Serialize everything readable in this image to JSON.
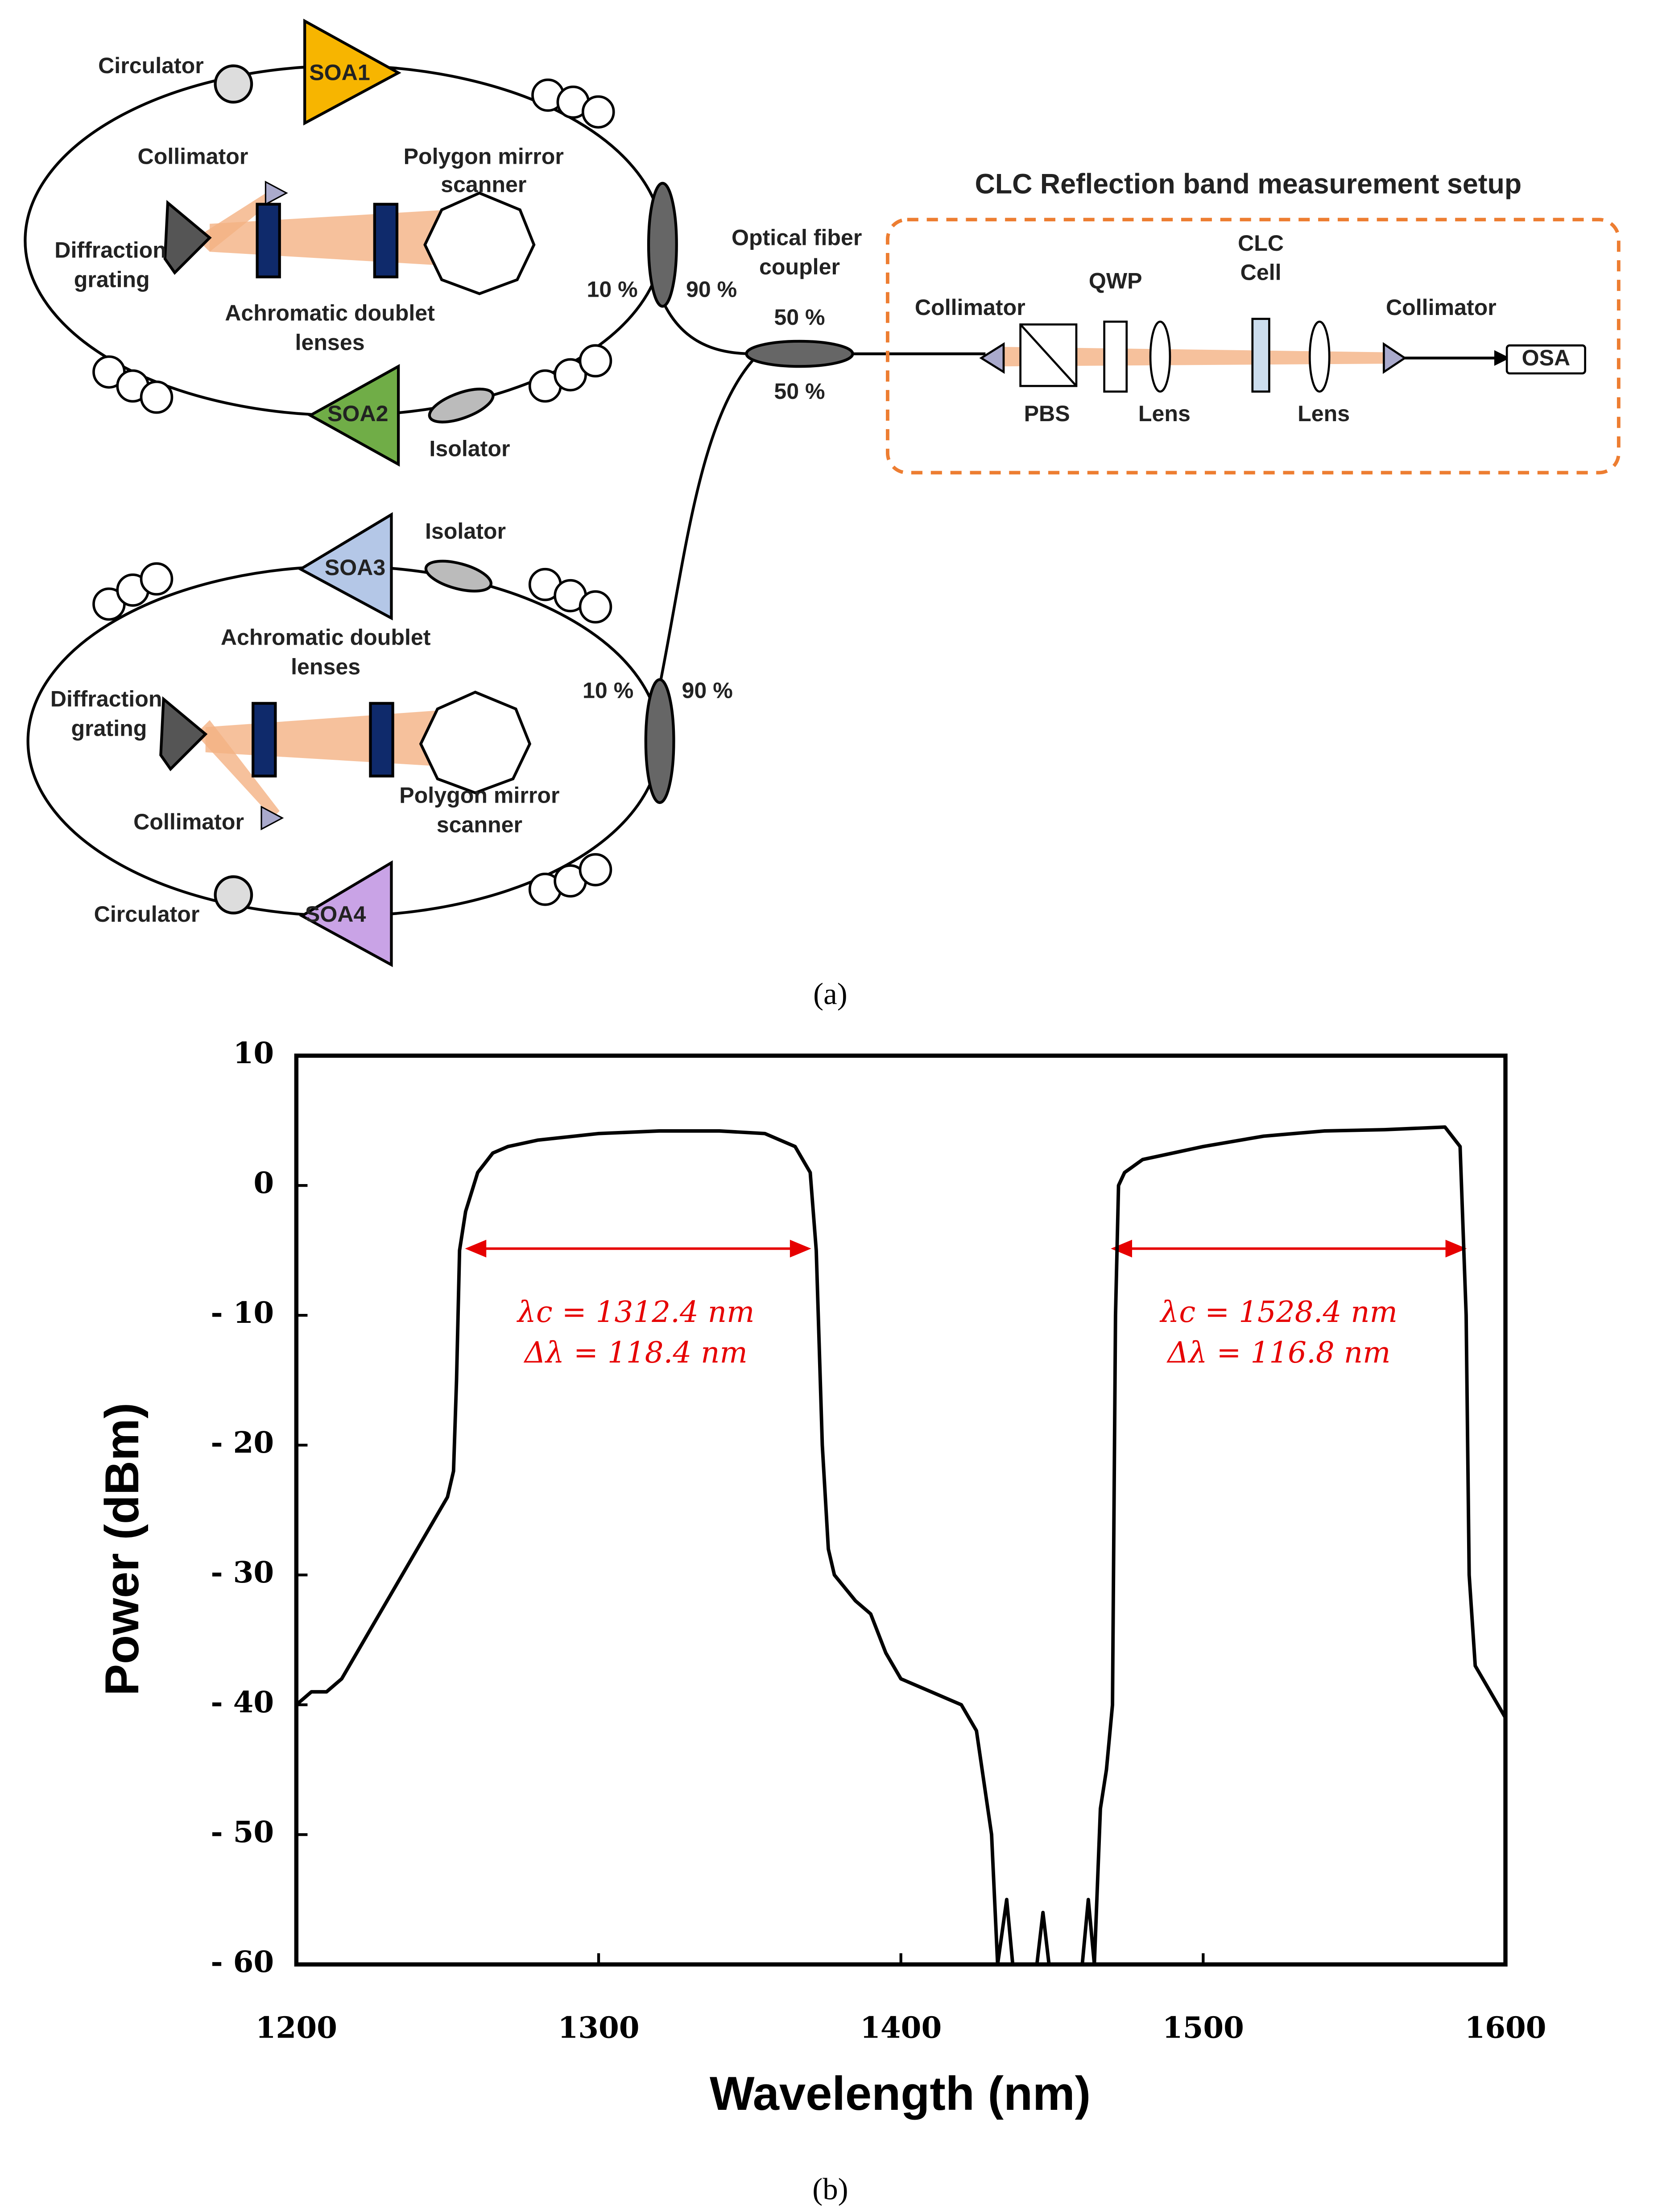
{
  "diagram": {
    "labels": [
      "Circulator",
      "SOA1",
      "Collimator",
      "Polygon mirror",
      "scanner",
      "Diffraction",
      "grating",
      "Achromatic doublet",
      "lenses",
      "10 %",
      "90 %",
      "SOA2",
      "Isolator",
      "Optical fiber",
      "coupler",
      "50 %",
      "50 %",
      "CLC Reflection band measurement setup",
      "Collimator",
      "QWP",
      "CLC",
      "Cell",
      "Collimator",
      "OSA",
      "PBS",
      "Lens",
      "Lens",
      "Isolator",
      "SOA3",
      "Achromatic doublet",
      "lenses",
      "10 %",
      "90 %",
      "Diffraction",
      "grating",
      "Polygon mirror",
      "scanner",
      "Collimator",
      "Circulator",
      "SOA4"
    ],
    "caption_a": "(a)",
    "caption_b": "(b)"
  },
  "chart_data": {
    "type": "line",
    "xlabel": "Wavelength (nm)",
    "ylabel": "Power (dBm)",
    "x": [
      1200,
      1205,
      1210,
      1215,
      1220,
      1225,
      1230,
      1235,
      1240,
      1245,
      1250,
      1252,
      1253,
      1254,
      1256,
      1260,
      1265,
      1270,
      1280,
      1300,
      1320,
      1340,
      1355,
      1365,
      1370,
      1372,
      1374,
      1376,
      1378,
      1385,
      1390,
      1395,
      1400,
      1410,
      1420,
      1425,
      1430,
      1432,
      1435,
      1437,
      1445,
      1447,
      1449,
      1460,
      1462,
      1464,
      1466,
      1468,
      1470,
      1471,
      1472,
      1474,
      1480,
      1500,
      1520,
      1540,
      1560,
      1580,
      1585,
      1587,
      1588,
      1590,
      1595,
      1600
    ],
    "series": [
      {
        "color": "#000000",
        "values": [
          -40,
          -39,
          -39,
          -38,
          -36,
          -34,
          -32,
          -30,
          -28,
          -26,
          -24,
          -22,
          -15,
          -5,
          -2,
          1,
          2.5,
          3,
          3.5,
          4,
          4.2,
          4.2,
          4,
          3,
          1,
          -5,
          -20,
          -28,
          -30,
          -32,
          -33,
          -36,
          -38,
          -39,
          -40,
          -42,
          -50,
          -60,
          -55,
          -60,
          -60,
          -56,
          -60,
          -60,
          -55,
          -60,
          -48,
          -45,
          -40,
          -10,
          0,
          1,
          2,
          3,
          3.8,
          4.2,
          4.3,
          4.5,
          3,
          -10,
          -30,
          -37,
          -39,
          -41
        ]
      }
    ],
    "xlim": [
      1200,
      1600
    ],
    "ylim": [
      -60,
      10
    ],
    "xticks": [
      1200,
      1300,
      1400,
      1500,
      1600
    ],
    "yticks": [
      10,
      0,
      {
        "value": -10,
        "label": "- 10"
      },
      {
        "value": -20,
        "label": "- 20"
      },
      {
        "value": -30,
        "label": "- 30"
      },
      {
        "value": -40,
        "label": "- 40"
      },
      {
        "value": -50,
        "label": "- 50"
      },
      {
        "value": -60,
        "label": "- 60"
      }
    ],
    "annotations": [
      "λc = 1312.4 nm",
      "Δλ = 118.4 nm",
      "λc = 1528.4 nm",
      "Δλ = 116.8 nm"
    ]
  }
}
